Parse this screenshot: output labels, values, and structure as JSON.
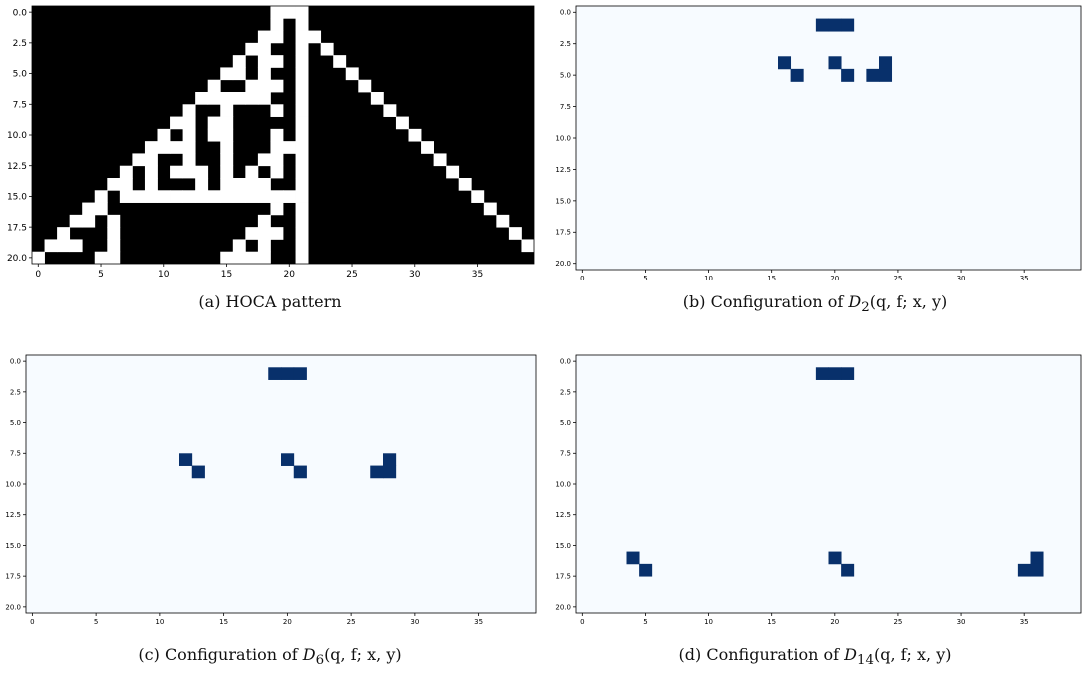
{
  "colors": {
    "hoca_on": "#ffffff",
    "hoca_off": "#000000",
    "config_bg": "#f7fbff",
    "config_on": "#08306b"
  },
  "chart_data": [
    {
      "id": "a",
      "type": "heatmap",
      "colormap": "gray",
      "title": "",
      "caption": {
        "label": "(a)",
        "text": "HOCA pattern"
      },
      "xlim": [
        -0.5,
        39.5
      ],
      "ylim": [
        20.5,
        -0.5
      ],
      "xticks": [
        "0",
        "5",
        "10",
        "15",
        "20",
        "25",
        "30",
        "35"
      ],
      "yticks": [
        "0.0",
        "2.5",
        "5.0",
        "7.5",
        "10.0",
        "12.5",
        "15.0",
        "17.5",
        "20.0"
      ],
      "rows": [
        "0000000000000000000111000000000000000000",
        "0000000000000000000101000000000000000000",
        "0000000000000000001101100000000000000000",
        "0000000000000000011001010000000000000000",
        "0000000000000000101101001000000000000000",
        "0000000000000001101001000100000000000000",
        "0000000000000010011101000010000000000000",
        "0000000000000111111001000001000000000000",
        "0000000000001001000101000000100000000000",
        "0000000000011011000001000000010000000000",
        "0000000000101011000101000000001000000000",
        "0000000001111001000111000000000100000000",
        "0000000011001001001101000000000010000000",
        "0000000101011101010101000000000001000000",
        "0000001101000101111001000000000000100000",
        "0000010111111111111111000000000000010000",
        "0000110000000000000101000000000000001000",
        "0001101000000000001001000000000000000100",
        "0010001000000000011101000000000000000010",
        "0111001000000000101001000000000000000001",
        "1000011000000001111001000000000000000000"
      ]
    },
    {
      "id": "b",
      "type": "heatmap",
      "colormap": "Blues",
      "title": "",
      "caption": {
        "label": "(b)",
        "text": "Configuration of",
        "math": {
          "sym": "D",
          "sub": "2",
          "args": "(q, f; x, y)"
        }
      },
      "xlim": [
        -0.5,
        39.5
      ],
      "ylim": [
        20.5,
        -0.5
      ],
      "xticks": [
        "0",
        "5",
        "10",
        "15",
        "20",
        "25",
        "30",
        "35"
      ],
      "yticks": [
        "0.0",
        "2.5",
        "5.0",
        "7.5",
        "10.0",
        "12.5",
        "15.0",
        "17.5",
        "20.0"
      ],
      "cells": [
        [
          19,
          1
        ],
        [
          20,
          1
        ],
        [
          21,
          1
        ],
        [
          16,
          4
        ],
        [
          17,
          5
        ],
        [
          20,
          4
        ],
        [
          21,
          5
        ],
        [
          24,
          4
        ],
        [
          23,
          5
        ],
        [
          24,
          5
        ]
      ]
    },
    {
      "id": "c",
      "type": "heatmap",
      "colormap": "Blues",
      "title": "",
      "caption": {
        "label": "(c)",
        "text": "Configuration of",
        "math": {
          "sym": "D",
          "sub": "6",
          "args": "(q, f; x, y)"
        }
      },
      "xlim": [
        -0.5,
        39.5
      ],
      "ylim": [
        20.5,
        -0.5
      ],
      "xticks": [
        "0",
        "5",
        "10",
        "15",
        "20",
        "25",
        "30",
        "35"
      ],
      "yticks": [
        "0.0",
        "2.5",
        "5.0",
        "7.5",
        "10.0",
        "12.5",
        "15.0",
        "17.5",
        "20.0"
      ],
      "cells": [
        [
          19,
          1
        ],
        [
          20,
          1
        ],
        [
          21,
          1
        ],
        [
          12,
          8
        ],
        [
          13,
          9
        ],
        [
          20,
          8
        ],
        [
          21,
          9
        ],
        [
          28,
          8
        ],
        [
          27,
          9
        ],
        [
          28,
          9
        ]
      ]
    },
    {
      "id": "d",
      "type": "heatmap",
      "colormap": "Blues",
      "title": "",
      "caption": {
        "label": "(d)",
        "text": "Configuration of",
        "math": {
          "sym": "D",
          "sub": "14",
          "args": "(q, f; x, y)"
        }
      },
      "xlim": [
        -0.5,
        39.5
      ],
      "ylim": [
        20.5,
        -0.5
      ],
      "xticks": [
        "0",
        "5",
        "10",
        "15",
        "20",
        "25",
        "30",
        "35"
      ],
      "yticks": [
        "0.0",
        "2.5",
        "5.0",
        "7.5",
        "10.0",
        "12.5",
        "15.0",
        "17.5",
        "20.0"
      ],
      "cells": [
        [
          19,
          1
        ],
        [
          20,
          1
        ],
        [
          21,
          1
        ],
        [
          4,
          16
        ],
        [
          5,
          17
        ],
        [
          20,
          16
        ],
        [
          21,
          17
        ],
        [
          36,
          16
        ],
        [
          35,
          17
        ],
        [
          36,
          17
        ]
      ]
    }
  ]
}
